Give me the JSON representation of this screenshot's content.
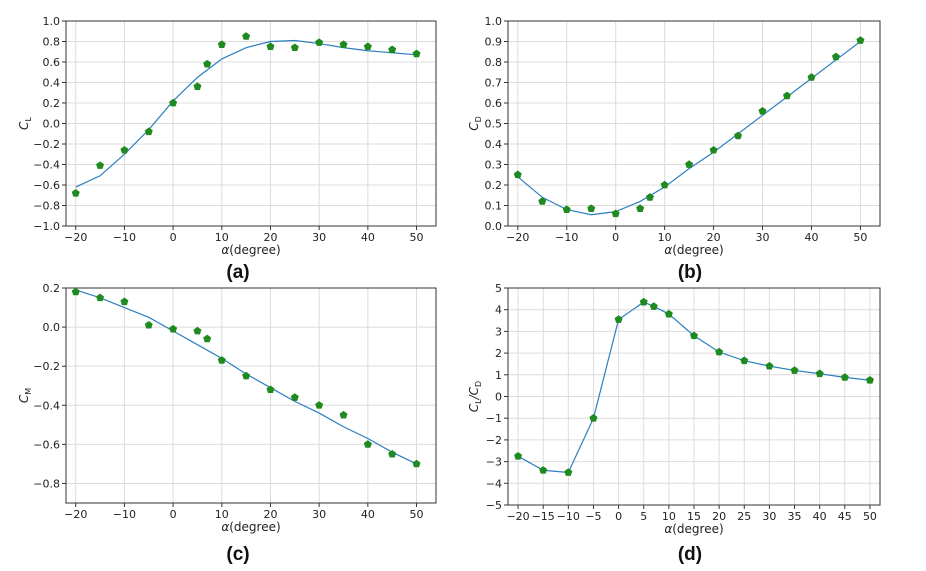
{
  "colors": {
    "fit_line": "#2a7fc0",
    "marker": "#1f8a1f",
    "grid": "#dcdcdc"
  },
  "chart_data": [
    {
      "type": "scatter",
      "panel_label": "(a)",
      "xlabel_symbol": "α",
      "xlabel_text": "(degree)",
      "ylabel_main": "C",
      "ylabel_sub": "L",
      "xlim": [
        -22,
        54
      ],
      "ylim": [
        -1.0,
        1.0
      ],
      "xticks": [
        -20,
        -10,
        0,
        10,
        20,
        30,
        40,
        50
      ],
      "yticks": [
        -1.0,
        -0.8,
        -0.6,
        -0.4,
        -0.2,
        0.0,
        0.2,
        0.4,
        0.6,
        0.8,
        1.0
      ],
      "ytick_labels": [
        "−1.0",
        "−0.8",
        "−0.6",
        "−0.4",
        "−0.2",
        "0.0",
        "0.2",
        "0.4",
        "0.6",
        "0.8",
        "1.0"
      ],
      "xtick_labels": [
        "−20",
        "−10",
        "0",
        "10",
        "20",
        "30",
        "40",
        "50"
      ],
      "grid": true,
      "series": [
        {
          "kind": "line",
          "x": [
            -20,
            -15,
            -10,
            -5,
            0,
            5,
            10,
            15,
            20,
            25,
            30,
            35,
            40,
            45,
            50
          ],
          "y": [
            -0.62,
            -0.51,
            -0.3,
            -0.06,
            0.22,
            0.45,
            0.63,
            0.74,
            0.8,
            0.81,
            0.78,
            0.74,
            0.71,
            0.69,
            0.67
          ]
        },
        {
          "kind": "markers",
          "x": [
            -20,
            -15,
            -10,
            -5,
            0,
            5,
            7,
            10,
            15,
            20,
            25,
            30,
            35,
            40,
            45,
            50
          ],
          "y": [
            -0.68,
            -0.41,
            -0.26,
            -0.08,
            0.2,
            0.36,
            0.58,
            0.77,
            0.85,
            0.75,
            0.74,
            0.79,
            0.77,
            0.75,
            0.72,
            0.68
          ]
        }
      ]
    },
    {
      "type": "scatter",
      "panel_label": "(b)",
      "xlabel_symbol": "α",
      "xlabel_text": "(degree)",
      "ylabel_main": "C",
      "ylabel_sub": "D",
      "xlim": [
        -22,
        54
      ],
      "ylim": [
        0.0,
        1.0
      ],
      "xticks": [
        -20,
        -10,
        0,
        10,
        20,
        30,
        40,
        50
      ],
      "yticks": [
        0.0,
        0.1,
        0.2,
        0.3,
        0.4,
        0.5,
        0.6,
        0.7,
        0.8,
        0.9,
        1.0
      ],
      "ytick_labels": [
        "0.0",
        "0.1",
        "0.2",
        "0.3",
        "0.4",
        "0.5",
        "0.6",
        "0.7",
        "0.8",
        "0.9",
        "1.0"
      ],
      "xtick_labels": [
        "−20",
        "−10",
        "0",
        "10",
        "20",
        "30",
        "40",
        "50"
      ],
      "grid": true,
      "series": [
        {
          "kind": "line",
          "x": [
            -20,
            -15,
            -10,
            -5,
            0,
            5,
            10,
            15,
            20,
            25,
            30,
            35,
            40,
            45,
            50
          ],
          "y": [
            0.24,
            0.14,
            0.08,
            0.055,
            0.07,
            0.12,
            0.19,
            0.28,
            0.36,
            0.45,
            0.54,
            0.63,
            0.72,
            0.81,
            0.9
          ]
        },
        {
          "kind": "markers",
          "x": [
            -20,
            -15,
            -10,
            -5,
            0,
            5,
            7,
            10,
            15,
            20,
            25,
            30,
            35,
            40,
            45,
            50
          ],
          "y": [
            0.25,
            0.12,
            0.08,
            0.085,
            0.06,
            0.085,
            0.14,
            0.2,
            0.3,
            0.37,
            0.44,
            0.56,
            0.635,
            0.725,
            0.825,
            0.905
          ]
        }
      ]
    },
    {
      "type": "scatter",
      "panel_label": "(c)",
      "xlabel_symbol": "α",
      "xlabel_text": "(degree)",
      "ylabel_main": "C",
      "ylabel_sub": "M",
      "xlim": [
        -22,
        54
      ],
      "ylim": [
        -0.9,
        0.2
      ],
      "xticks": [
        -20,
        -10,
        0,
        10,
        20,
        30,
        40,
        50
      ],
      "yticks": [
        -0.8,
        -0.6,
        -0.4,
        -0.2,
        0.0,
        0.2
      ],
      "ytick_labels": [
        "−0.8",
        "−0.6",
        "−0.4",
        "−0.2",
        "0.0",
        "0.2"
      ],
      "xtick_labels": [
        "−20",
        "−10",
        "0",
        "10",
        "20",
        "30",
        "40",
        "50"
      ],
      "grid": true,
      "series": [
        {
          "kind": "line",
          "x": [
            -20,
            -15,
            -10,
            -5,
            0,
            5,
            10,
            15,
            20,
            25,
            30,
            35,
            40,
            45,
            50
          ],
          "y": [
            0.19,
            0.15,
            0.1,
            0.05,
            -0.02,
            -0.09,
            -0.16,
            -0.24,
            -0.31,
            -0.38,
            -0.44,
            -0.51,
            -0.57,
            -0.64,
            -0.7
          ]
        },
        {
          "kind": "markers",
          "x": [
            -20,
            -15,
            -10,
            -5,
            0,
            5,
            7,
            10,
            15,
            20,
            25,
            30,
            35,
            40,
            45,
            50
          ],
          "y": [
            0.18,
            0.15,
            0.13,
            0.01,
            -0.01,
            -0.02,
            -0.06,
            -0.17,
            -0.25,
            -0.32,
            -0.36,
            -0.4,
            -0.45,
            -0.6,
            -0.65,
            -0.7
          ]
        }
      ]
    },
    {
      "type": "line",
      "panel_label": "(d)",
      "xlabel_symbol": "α",
      "xlabel_text": "(degree)",
      "ylabel_main": "C",
      "ylabel_sub": "L",
      "ylabel_sep": "/C",
      "ylabel_sub2": "D",
      "xlim": [
        -22,
        52
      ],
      "ylim": [
        -5,
        5
      ],
      "xticks": [
        -20,
        -15,
        -10,
        -5,
        0,
        5,
        10,
        15,
        20,
        25,
        30,
        35,
        40,
        45,
        50
      ],
      "yticks": [
        -5,
        -4,
        -3,
        -2,
        -1,
        0,
        1,
        2,
        3,
        4,
        5
      ],
      "ytick_labels": [
        "−5",
        "−4",
        "−3",
        "−2",
        "−1",
        "0",
        "1",
        "2",
        "3",
        "4",
        "5"
      ],
      "xtick_labels": [
        "−20",
        "−15",
        "−10",
        "−5",
        "0",
        "5",
        "10",
        "15",
        "20",
        "25",
        "30",
        "35",
        "40",
        "45",
        "50"
      ],
      "grid": true,
      "series": [
        {
          "kind": "line",
          "x": [
            -20,
            -15,
            -10,
            -5,
            0,
            5,
            7,
            10,
            15,
            20,
            25,
            30,
            35,
            40,
            45,
            50
          ],
          "y": [
            -2.75,
            -3.4,
            -3.5,
            -1.0,
            3.55,
            4.35,
            4.15,
            3.8,
            2.8,
            2.05,
            1.65,
            1.4,
            1.2,
            1.05,
            0.88,
            0.75
          ]
        },
        {
          "kind": "markers",
          "x": [
            -20,
            -15,
            -10,
            -5,
            0,
            5,
            7,
            10,
            15,
            20,
            25,
            30,
            35,
            40,
            45,
            50
          ],
          "y": [
            -2.75,
            -3.4,
            -3.5,
            -1.0,
            3.55,
            4.35,
            4.15,
            3.8,
            2.8,
            2.05,
            1.65,
            1.4,
            1.2,
            1.05,
            0.88,
            0.75
          ]
        }
      ]
    }
  ]
}
